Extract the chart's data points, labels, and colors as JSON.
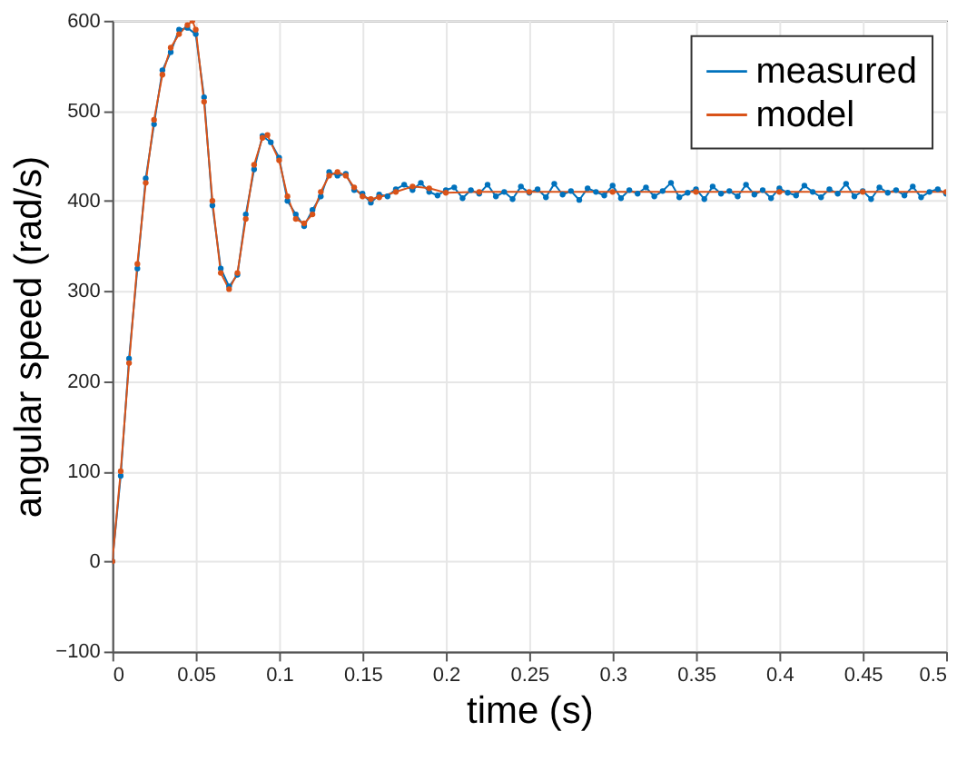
{
  "chart_data": {
    "type": "line",
    "xlabel": "time (s)",
    "ylabel": "angular speed (rad/s)",
    "xlim": [
      0,
      0.5
    ],
    "xticks": [
      0,
      0.05,
      0.1,
      0.15,
      0.2,
      0.25,
      0.3,
      0.35,
      0.4,
      0.45,
      0.5
    ],
    "ylim": [
      -100,
      600
    ],
    "yticks": [
      -100,
      0,
      100,
      200,
      300,
      400,
      500,
      600
    ],
    "grid": true,
    "legend": "top right",
    "marker": "circle",
    "line_style": "solid",
    "series": [
      {
        "name": "measured",
        "color": "#0072bd",
        "x": [
          0,
          0.005,
          0.01,
          0.015,
          0.02,
          0.025,
          0.03,
          0.035,
          0.04,
          0.045,
          0.05,
          0.055,
          0.06,
          0.065,
          0.07,
          0.075,
          0.08,
          0.085,
          0.09,
          0.095,
          0.1,
          0.105,
          0.11,
          0.115,
          0.12,
          0.125,
          0.13,
          0.135,
          0.14,
          0.145,
          0.15,
          0.155,
          0.16,
          0.165,
          0.17,
          0.175,
          0.18,
          0.185,
          0.19,
          0.195,
          0.2,
          0.205,
          0.21,
          0.215,
          0.22,
          0.225,
          0.23,
          0.235,
          0.24,
          0.245,
          0.25,
          0.255,
          0.26,
          0.265,
          0.27,
          0.275,
          0.28,
          0.285,
          0.29,
          0.295,
          0.3,
          0.305,
          0.31,
          0.315,
          0.32,
          0.325,
          0.33,
          0.335,
          0.34,
          0.345,
          0.35,
          0.355,
          0.36,
          0.365,
          0.37,
          0.375,
          0.38,
          0.385,
          0.39,
          0.395,
          0.4,
          0.405,
          0.41,
          0.415,
          0.42,
          0.425,
          0.43,
          0.435,
          0.44,
          0.445,
          0.45,
          0.455,
          0.46,
          0.465,
          0.47,
          0.475,
          0.48,
          0.485,
          0.49,
          0.495,
          0.5
        ],
        "values": [
          0,
          95,
          225,
          325,
          425,
          485,
          545,
          565,
          590,
          592,
          585,
          515,
          395,
          325,
          305,
          318,
          385,
          435,
          472,
          465,
          448,
          400,
          385,
          372,
          390,
          405,
          432,
          428,
          430,
          412,
          408,
          398,
          407,
          405,
          413,
          418,
          412,
          420,
          410,
          406,
          412,
          415,
          403,
          412,
          408,
          418,
          405,
          410,
          402,
          416,
          409,
          413,
          404,
          419,
          407,
          411,
          401,
          414,
          410,
          406,
          417,
          403,
          412,
          408,
          415,
          405,
          411,
          420,
          404,
          409,
          413,
          402,
          416,
          408,
          411,
          405,
          418,
          407,
          412,
          403,
          414,
          409,
          406,
          417,
          410,
          404,
          413,
          408,
          419,
          405,
          411,
          402,
          415,
          409,
          412,
          406,
          416,
          404,
          410,
          413,
          408
        ]
      },
      {
        "name": "model",
        "color": "#d95319",
        "x": [
          0,
          0.005,
          0.01,
          0.015,
          0.02,
          0.025,
          0.03,
          0.035,
          0.04,
          0.045,
          0.048,
          0.05,
          0.055,
          0.06,
          0.065,
          0.07,
          0.075,
          0.08,
          0.085,
          0.09,
          0.093,
          0.1,
          0.105,
          0.11,
          0.115,
          0.12,
          0.125,
          0.13,
          0.135,
          0.14,
          0.145,
          0.15,
          0.155,
          0.16,
          0.17,
          0.18,
          0.19,
          0.2,
          0.22,
          0.25,
          0.3,
          0.35,
          0.4,
          0.45,
          0.5
        ],
        "values": [
          0,
          100,
          220,
          330,
          420,
          490,
          540,
          570,
          585,
          595,
          600,
          590,
          510,
          400,
          320,
          302,
          320,
          380,
          440,
          470,
          473,
          445,
          405,
          380,
          375,
          385,
          410,
          428,
          432,
          428,
          415,
          405,
          402,
          404,
          410,
          416,
          414,
          409,
          410,
          410,
          410,
          410,
          410,
          410,
          410
        ]
      }
    ]
  }
}
